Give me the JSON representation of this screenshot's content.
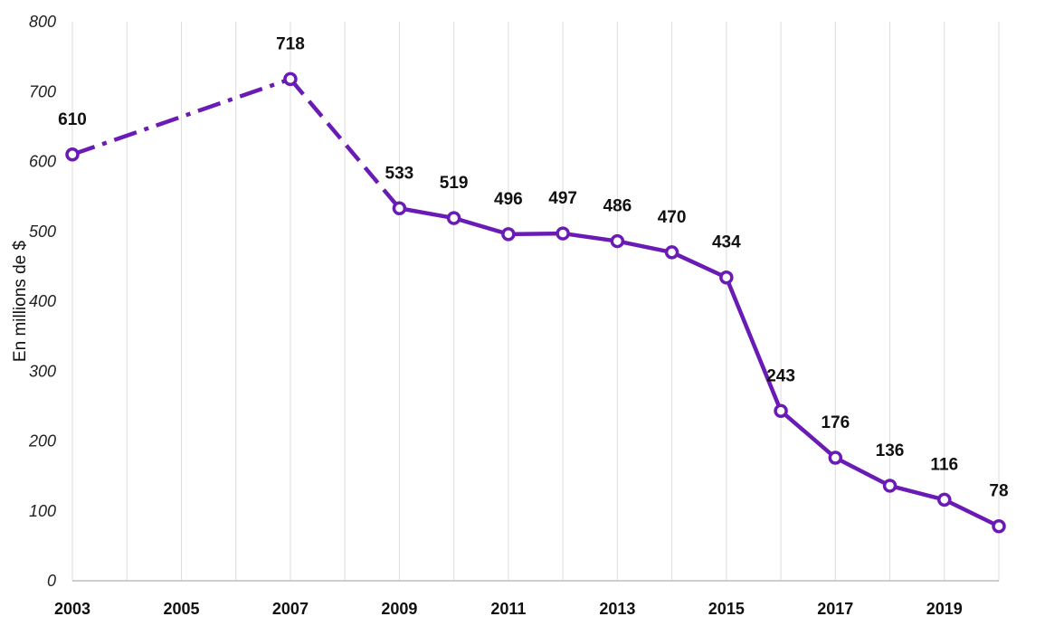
{
  "chart_data": {
    "type": "line",
    "ylabel": "En millions de $",
    "ylim": [
      0,
      800
    ],
    "yticks": [
      0,
      100,
      200,
      300,
      400,
      500,
      600,
      700,
      800
    ],
    "xlim": [
      2003,
      2020
    ],
    "xticks": [
      2003,
      2005,
      2007,
      2009,
      2011,
      2013,
      2015,
      2017,
      2019
    ],
    "grid": "vertical",
    "legend": "none",
    "color": "#6A1BB5",
    "series": [
      {
        "points": [
          {
            "x": 2003,
            "y": 610
          },
          {
            "x": 2007,
            "y": 718
          },
          {
            "x": 2009,
            "y": 533
          },
          {
            "x": 2010,
            "y": 519
          },
          {
            "x": 2011,
            "y": 496
          },
          {
            "x": 2012,
            "y": 497
          },
          {
            "x": 2013,
            "y": 486
          },
          {
            "x": 2014,
            "y": 470
          },
          {
            "x": 2015,
            "y": 434
          },
          {
            "x": 2016,
            "y": 243
          },
          {
            "x": 2017,
            "y": 176
          },
          {
            "x": 2018,
            "y": 136
          },
          {
            "x": 2019,
            "y": 116
          },
          {
            "x": 2020,
            "y": 78
          }
        ]
      }
    ]
  }
}
